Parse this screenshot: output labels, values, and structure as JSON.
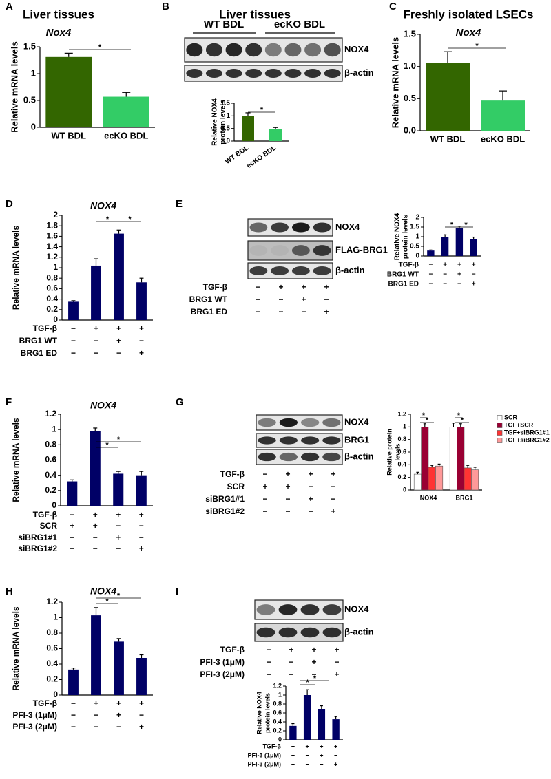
{
  "chart_data": [
    {
      "panel": "A",
      "type": "bar",
      "title": "Liver tissues",
      "subtitle": "Nox4",
      "ylabel": [
        "Relative mRNA levels"
      ],
      "categories": [
        "WT BDL",
        "ecKO BDL"
      ],
      "values": [
        1.31,
        0.57
      ],
      "errors": [
        0.07,
        0.08
      ],
      "colors": [
        "#336600",
        "#33cc66"
      ],
      "ylim": [
        0,
        1.5
      ],
      "yticks": [
        0,
        0.5,
        1,
        1.5
      ],
      "annotations": [
        "*"
      ]
    },
    {
      "panel": "B",
      "type": "bar",
      "title": "Liver tissues",
      "blot": {
        "headers": [
          "WT BDL",
          "ecKO BDL"
        ],
        "bands": [
          "NOX4",
          "β-actin"
        ]
      },
      "ylabel": [
        "Relative NOX4",
        "protein levels"
      ],
      "categories": [
        "WT BDL",
        "ecKO BDL"
      ],
      "values": [
        1.0,
        0.47
      ],
      "errors": [
        0.12,
        0.07
      ],
      "colors": [
        "#336600",
        "#33cc66"
      ],
      "ylim": [
        0,
        1.5
      ],
      "yticks": [
        0,
        0.5,
        1,
        1.5
      ],
      "annotations": [
        "*"
      ]
    },
    {
      "panel": "C",
      "type": "bar",
      "title": "Freshly isolated LSECs",
      "subtitle": "Nox4",
      "ylabel": [
        "Relative mRNA levels"
      ],
      "categories": [
        "WT BDL",
        "ecKO BDL"
      ],
      "values": [
        1.05,
        0.47
      ],
      "errors": [
        0.18,
        0.15
      ],
      "colors": [
        "#336600",
        "#33cc66"
      ],
      "ylim": [
        0,
        1.5
      ],
      "yticks": [
        {
          "value": 0,
          "label": "0.0"
        },
        0.5,
        {
          "value": 1,
          "label": "1.0"
        },
        1.5
      ],
      "annotations": [
        "*"
      ]
    },
    {
      "panel": "D",
      "type": "bar",
      "title": "NOX4",
      "ylabel": [
        "Relative mRNA levels"
      ],
      "values": [
        0.35,
        1.04,
        1.65,
        0.72
      ],
      "errors": [
        0.02,
        0.13,
        0.07,
        0.08
      ],
      "color": "#000066",
      "ylim": [
        0,
        2
      ],
      "yticks": [
        0,
        0.2,
        0.4,
        0.6,
        0.8,
        1,
        1.2,
        1.4,
        1.6,
        1.8,
        2
      ],
      "conditions": [
        {
          "label": "TGF-β",
          "values": [
            "−",
            "+",
            "+",
            "+"
          ]
        },
        {
          "label": "BRG1 WT",
          "values": [
            "−",
            "−",
            "+",
            "−"
          ]
        },
        {
          "label": "BRG1 ED",
          "values": [
            "−",
            "−",
            "−",
            "+"
          ]
        }
      ],
      "annotations": [
        "*",
        "*"
      ]
    },
    {
      "panel": "E",
      "type": "bar",
      "blot": {
        "bands": [
          "NOX4",
          "FLAG-BRG1",
          "β-actin"
        ],
        "conditions": [
          {
            "label": "TGF-β",
            "values": [
              "−",
              "+",
              "+",
              "+"
            ]
          },
          {
            "label": "BRG1 WT",
            "values": [
              "−",
              "−",
              "+",
              "−"
            ]
          },
          {
            "label": "BRG1 ED",
            "values": [
              "−",
              "−",
              "−",
              "+"
            ]
          }
        ]
      },
      "ylabel": [
        "Relative NOX4",
        "protein levels"
      ],
      "values": [
        0.28,
        1.0,
        1.45,
        0.88
      ],
      "errors": [
        0.03,
        0.1,
        0.1,
        0.1
      ],
      "color": "#000066",
      "ylim": [
        0,
        2
      ],
      "yticks": [
        0,
        0.5,
        1,
        1.5,
        2
      ],
      "conditions": [
        {
          "label": "TGF-β",
          "values": [
            "−",
            "+",
            "+",
            "+"
          ]
        },
        {
          "label": "BRG1 WT",
          "values": [
            "−",
            "−",
            "+",
            "−"
          ]
        },
        {
          "label": "BRG1 ED",
          "values": [
            "−",
            "−",
            "−",
            "+"
          ]
        }
      ],
      "annotations": [
        "*",
        "*"
      ]
    },
    {
      "panel": "F",
      "type": "bar",
      "title": "NOX4",
      "ylabel": [
        "Relative mRNA levels"
      ],
      "values": [
        0.32,
        0.98,
        0.42,
        0.4
      ],
      "errors": [
        0.02,
        0.04,
        0.03,
        0.05
      ],
      "color": "#000066",
      "ylim": [
        0,
        1.2
      ],
      "yticks": [
        0,
        0.2,
        0.4,
        0.6,
        0.8,
        1,
        1.2
      ],
      "conditions": [
        {
          "label": "TGF-β",
          "values": [
            "−",
            "+",
            "+",
            "+"
          ]
        },
        {
          "label": "SCR",
          "values": [
            "+",
            "+",
            "−",
            "−"
          ]
        },
        {
          "label": "siBRG1#1",
          "values": [
            "−",
            "−",
            "+",
            "−"
          ]
        },
        {
          "label": "siBRG1#2",
          "values": [
            "−",
            "−",
            "−",
            "+"
          ]
        }
      ],
      "annotations": [
        "*",
        "*"
      ]
    },
    {
      "panel": "G",
      "type": "grouped_bar",
      "blot": {
        "bands": [
          "NOX4",
          "BRG1",
          "β-actin"
        ],
        "conditions": [
          {
            "label": "TGF-β",
            "values": [
              "−",
              "+",
              "+",
              "+"
            ]
          },
          {
            "label": "SCR",
            "values": [
              "+",
              "+",
              "−",
              "−"
            ]
          },
          {
            "label": "siBRG1#1",
            "values": [
              "−",
              "−",
              "+",
              "−"
            ]
          },
          {
            "label": "siBRG1#2",
            "values": [
              "−",
              "−",
              "−",
              "+"
            ]
          }
        ]
      },
      "ylabel": [
        "Relative protein",
        "levels"
      ],
      "categories": [
        "NOX4",
        "BRG1"
      ],
      "series": [
        {
          "name": "SCR",
          "color": "#ffffff",
          "values": [
            0.25,
            1.0
          ],
          "errors": [
            0.03,
            0.06
          ]
        },
        {
          "name": "TGF+SCR",
          "color": "#990033",
          "values": [
            1.0,
            1.0
          ],
          "errors": [
            0.05,
            0.05
          ]
        },
        {
          "name": "TGF+siBRG1#1",
          "color": "#ff3333",
          "values": [
            0.36,
            0.35
          ],
          "errors": [
            0.03,
            0.04
          ]
        },
        {
          "name": "TGF+siBRG1#2",
          "color": "#ff9999",
          "values": [
            0.38,
            0.32
          ],
          "errors": [
            0.03,
            0.04
          ]
        }
      ],
      "ylim": [
        0,
        1.2
      ],
      "yticks": [
        0,
        0.2,
        0.4,
        0.6,
        0.8,
        1,
        1.2
      ],
      "annotations": [
        "*",
        "*",
        "*",
        "*"
      ]
    },
    {
      "panel": "H",
      "type": "bar",
      "title": "NOX4",
      "ylabel": [
        "Relative mRNA levels"
      ],
      "values": [
        0.33,
        1.03,
        0.69,
        0.48
      ],
      "errors": [
        0.02,
        0.1,
        0.04,
        0.04
      ],
      "color": "#000066",
      "ylim": [
        0,
        1.2
      ],
      "yticks": [
        0,
        0.2,
        0.4,
        0.6,
        0.8,
        1,
        1.2
      ],
      "conditions": [
        {
          "label": "TGF-β",
          "values": [
            "−",
            "+",
            "+",
            "+"
          ]
        },
        {
          "label": "PFI-3 (1μM)",
          "values": [
            "−",
            "−",
            "+",
            "−"
          ]
        },
        {
          "label": "PFI-3 (2μM)",
          "values": [
            "−",
            "−",
            "−",
            "+"
          ]
        }
      ],
      "annotations": [
        "*",
        "*"
      ]
    },
    {
      "panel": "I",
      "type": "bar",
      "blot": {
        "bands": [
          "NOX4",
          "β-actin"
        ],
        "conditions": [
          {
            "label": "TGF-β",
            "values": [
              "−",
              "+",
              "+",
              "+"
            ]
          },
          {
            "label": "PFI-3 (1μM)",
            "values": [
              "−",
              "−",
              "+",
              "−"
            ]
          },
          {
            "label": "PFI-3 (2μM)",
            "values": [
              "−",
              "−",
              "−",
              "+"
            ]
          }
        ]
      },
      "ylabel": [
        "Relative NOX4",
        "protein levels"
      ],
      "values": [
        0.31,
        1.0,
        0.68,
        0.46
      ],
      "errors": [
        0.05,
        0.12,
        0.08,
        0.06
      ],
      "color": "#000066",
      "ylim": [
        0,
        1.2
      ],
      "yticks": [
        0,
        0.2,
        0.4,
        0.6,
        0.8,
        1,
        1.2
      ],
      "conditions": [
        {
          "label": "TGF-β",
          "values": [
            "−",
            "+",
            "+",
            "+"
          ]
        },
        {
          "label": "PFI-3 (1μM)",
          "values": [
            "−",
            "−",
            "+",
            "−"
          ]
        },
        {
          "label": "PFI-3 (2μM)",
          "values": [
            "−",
            "−",
            "−",
            "+"
          ]
        }
      ],
      "annotations": [
        "*",
        "*"
      ]
    }
  ]
}
